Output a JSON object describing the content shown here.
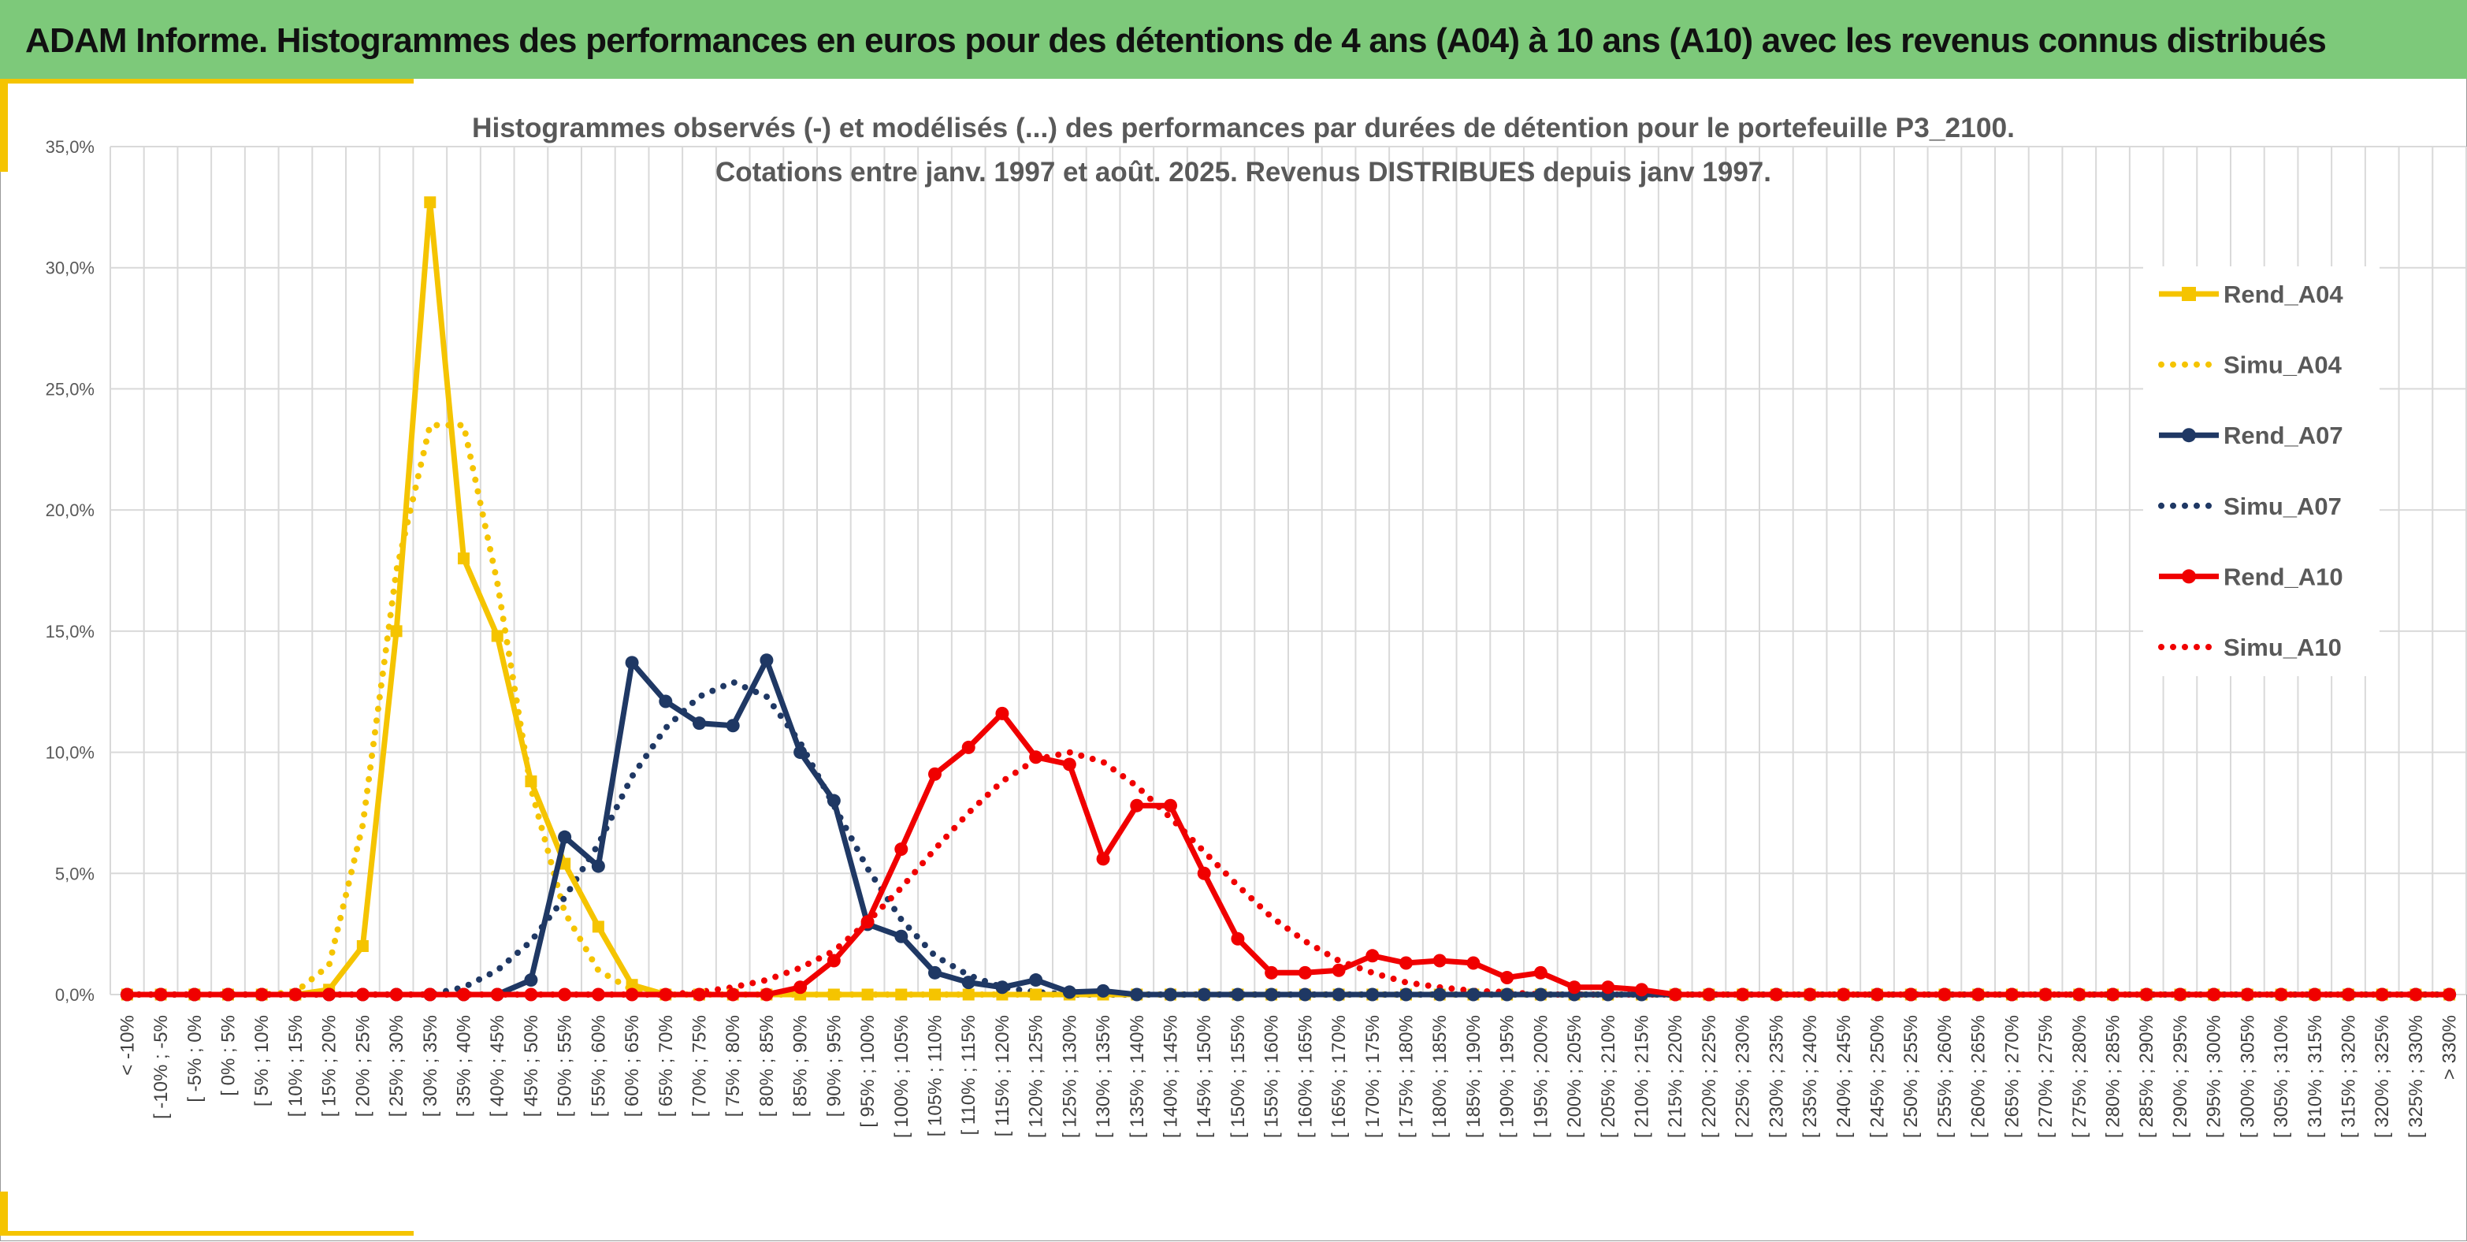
{
  "header": {
    "title": "ADAM Informe. Histogrammes des performances en euros pour des détentions de 4 ans (A04) à 10 ans (A10) avec les revenus connus distribués"
  },
  "colors": {
    "header_bg": "#7dc97a",
    "accent": "#f5c400",
    "a04": "#f5c400",
    "a07": "#1f3864",
    "a10": "#f00000"
  },
  "chart_data": {
    "type": "line",
    "title": [
      "Histogrammes observés (-) et modélisés (...) des performances par durées de détention pour le portefeuille P3_2100.",
      "Cotations entre janv. 1997 et août. 2025. Revenus DISTRIBUES depuis janv 1997."
    ],
    "xlabel": "",
    "ylabel": "",
    "ylim": [
      0,
      35
    ],
    "yticks": [
      "0,0%",
      "5,0%",
      "10,0%",
      "15,0%",
      "20,0%",
      "25,0%",
      "30,0%",
      "35,0%"
    ],
    "grid": true,
    "legend_position": "right",
    "categories": [
      "< -10%",
      "[ -10% ; -5%",
      "[ -5% ; 0%",
      "[ 0% ; 5%",
      "[ 5% ; 10%",
      "[ 10% ; 15%",
      "[ 15% ; 20%",
      "[ 20% ; 25%",
      "[ 25% ; 30%",
      "[ 30% ; 35%",
      "[ 35% ; 40%",
      "[ 40% ; 45%",
      "[ 45% ; 50%",
      "[ 50% ; 55%",
      "[ 55% ; 60%",
      "[ 60% ; 65%",
      "[ 65% ; 70%",
      "[ 70% ; 75%",
      "[ 75% ; 80%",
      "[ 80% ; 85%",
      "[ 85% ; 90%",
      "[ 90% ; 95%",
      "[ 95% ; 100%",
      "[ 100% ; 105%",
      "[ 105% ; 110%",
      "[ 110% ; 115%",
      "[ 115% ; 120%",
      "[ 120% ; 125%",
      "[ 125% ; 130%",
      "[ 130% ; 135%",
      "[ 135% ; 140%",
      "[ 140% ; 145%",
      "[ 145% ; 150%",
      "[ 150% ; 155%",
      "[ 155% ; 160%",
      "[ 160% ; 165%",
      "[ 165% ; 170%",
      "[ 170% ; 175%",
      "[ 175% ; 180%",
      "[ 180% ; 185%",
      "[ 185% ; 190%",
      "[ 190% ; 195%",
      "[ 195% ; 200%",
      "[ 200% ; 205%",
      "[ 205% ; 210%",
      "[ 210% ; 215%",
      "[ 215% ; 220%",
      "[ 220% ; 225%",
      "[ 225% ; 230%",
      "[ 230% ; 235%",
      "[ 235% ; 240%",
      "[ 240% ; 245%",
      "[ 245% ; 250%",
      "[ 250% ; 255%",
      "[ 255% ; 260%",
      "[ 260% ; 265%",
      "[ 265% ; 270%",
      "[ 270% ; 275%",
      "[ 275% ; 280%",
      "[ 280% ; 285%",
      "[ 285% ; 290%",
      "[ 290% ; 295%",
      "[ 295% ; 300%",
      "[ 300% ; 305%",
      "[ 305% ; 310%",
      "[ 310% ; 315%",
      "[ 315% ; 320%",
      "[ 320% ; 325%",
      "[ 325% ; 330%",
      "> 330%"
    ],
    "series": [
      {
        "name": "Rend_A04",
        "style": "solid",
        "marker": "square",
        "color": "#f5c400",
        "values": [
          0,
          0,
          0,
          0,
          0,
          0,
          0.2,
          2.0,
          15.0,
          32.7,
          18.0,
          14.8,
          8.8,
          5.4,
          2.8,
          0.4,
          0,
          0,
          0,
          0,
          0,
          0,
          0,
          0,
          0,
          0,
          0,
          0,
          0,
          0,
          0,
          0,
          0,
          0,
          0,
          0,
          0,
          0,
          0,
          0,
          0,
          0,
          0,
          0,
          0,
          0,
          0,
          0,
          0,
          0,
          0,
          0,
          0,
          0,
          0,
          0,
          0,
          0,
          0,
          0,
          0,
          0,
          0,
          0,
          0,
          0,
          0,
          0,
          0,
          0
        ]
      },
      {
        "name": "Simu_A04",
        "style": "dotted",
        "marker": "none",
        "color": "#f5c400",
        "values": [
          0,
          0,
          0,
          0,
          0,
          0.1,
          1.2,
          7.0,
          17.5,
          23.5,
          23.5,
          17.0,
          8.5,
          3.4,
          1.0,
          0.2,
          0,
          0,
          0,
          0,
          0,
          0,
          0,
          0,
          0,
          0,
          0,
          0,
          0,
          0,
          0,
          0,
          0,
          0,
          0,
          0,
          0,
          0,
          0,
          0,
          0,
          0,
          0,
          0,
          0,
          0,
          0,
          0,
          0,
          0,
          0,
          0,
          0,
          0,
          0,
          0,
          0,
          0,
          0,
          0,
          0,
          0,
          0,
          0,
          0,
          0,
          0,
          0,
          0,
          0
        ]
      },
      {
        "name": "Rend_A07",
        "style": "solid",
        "marker": "circle",
        "color": "#1f3864",
        "values": [
          0,
          0,
          0,
          0,
          0,
          0,
          0,
          0,
          0,
          0,
          0,
          0,
          0.6,
          6.5,
          5.3,
          13.7,
          12.1,
          11.2,
          11.1,
          13.8,
          10.0,
          8.0,
          2.9,
          2.4,
          0.9,
          0.5,
          0.3,
          0.6,
          0.1,
          0.15,
          0,
          0,
          0,
          0,
          0,
          0,
          0,
          0,
          0,
          0,
          0,
          0,
          0,
          0,
          0,
          0,
          0,
          0,
          0,
          0,
          0,
          0,
          0,
          0,
          0,
          0,
          0,
          0,
          0,
          0,
          0,
          0,
          0,
          0,
          0,
          0,
          0,
          0,
          0,
          0
        ]
      },
      {
        "name": "Simu_A07",
        "style": "dotted",
        "marker": "none",
        "color": "#1f3864",
        "values": [
          0,
          0,
          0,
          0,
          0,
          0,
          0,
          0,
          0,
          0,
          0.3,
          1.0,
          2.2,
          4.0,
          6.2,
          9.0,
          11.0,
          12.3,
          12.9,
          12.3,
          10.4,
          7.8,
          5.2,
          3.1,
          1.6,
          0.8,
          0.3,
          0.1,
          0,
          0,
          0,
          0,
          0,
          0,
          0,
          0,
          0,
          0,
          0,
          0,
          0,
          0,
          0,
          0,
          0,
          0,
          0,
          0,
          0,
          0,
          0,
          0,
          0,
          0,
          0,
          0,
          0,
          0,
          0,
          0,
          0,
          0,
          0,
          0,
          0,
          0,
          0,
          0,
          0,
          0
        ]
      },
      {
        "name": "Rend_A10",
        "style": "solid",
        "marker": "circle",
        "color": "#f00000",
        "values": [
          0,
          0,
          0,
          0,
          0,
          0,
          0,
          0,
          0,
          0,
          0,
          0,
          0,
          0,
          0,
          0,
          0,
          0,
          0,
          0,
          0.3,
          1.4,
          3.0,
          6.0,
          9.1,
          10.2,
          11.6,
          9.8,
          9.5,
          5.6,
          7.8,
          7.8,
          5.0,
          2.3,
          0.9,
          0.9,
          1.0,
          1.6,
          1.3,
          1.4,
          1.3,
          0.7,
          0.9,
          0.3,
          0.3,
          0.2,
          0,
          0,
          0,
          0,
          0,
          0,
          0,
          0,
          0,
          0,
          0,
          0,
          0,
          0,
          0,
          0,
          0,
          0,
          0,
          0,
          0,
          0,
          0,
          0
        ]
      },
      {
        "name": "Simu_A10",
        "style": "dotted",
        "marker": "none",
        "color": "#f00000",
        "values": [
          0,
          0,
          0,
          0,
          0,
          0,
          0,
          0,
          0,
          0,
          0,
          0,
          0,
          0,
          0,
          0,
          0,
          0.1,
          0.3,
          0.6,
          1.1,
          1.8,
          3.0,
          4.4,
          6.0,
          7.5,
          8.8,
          9.7,
          10.0,
          9.6,
          8.6,
          7.3,
          5.9,
          4.5,
          3.2,
          2.2,
          1.4,
          0.9,
          0.5,
          0.3,
          0.15,
          0.1,
          0,
          0,
          0,
          0,
          0,
          0,
          0,
          0,
          0,
          0,
          0,
          0,
          0,
          0,
          0,
          0,
          0,
          0,
          0,
          0,
          0,
          0,
          0,
          0,
          0,
          0,
          0,
          0
        ]
      }
    ]
  }
}
